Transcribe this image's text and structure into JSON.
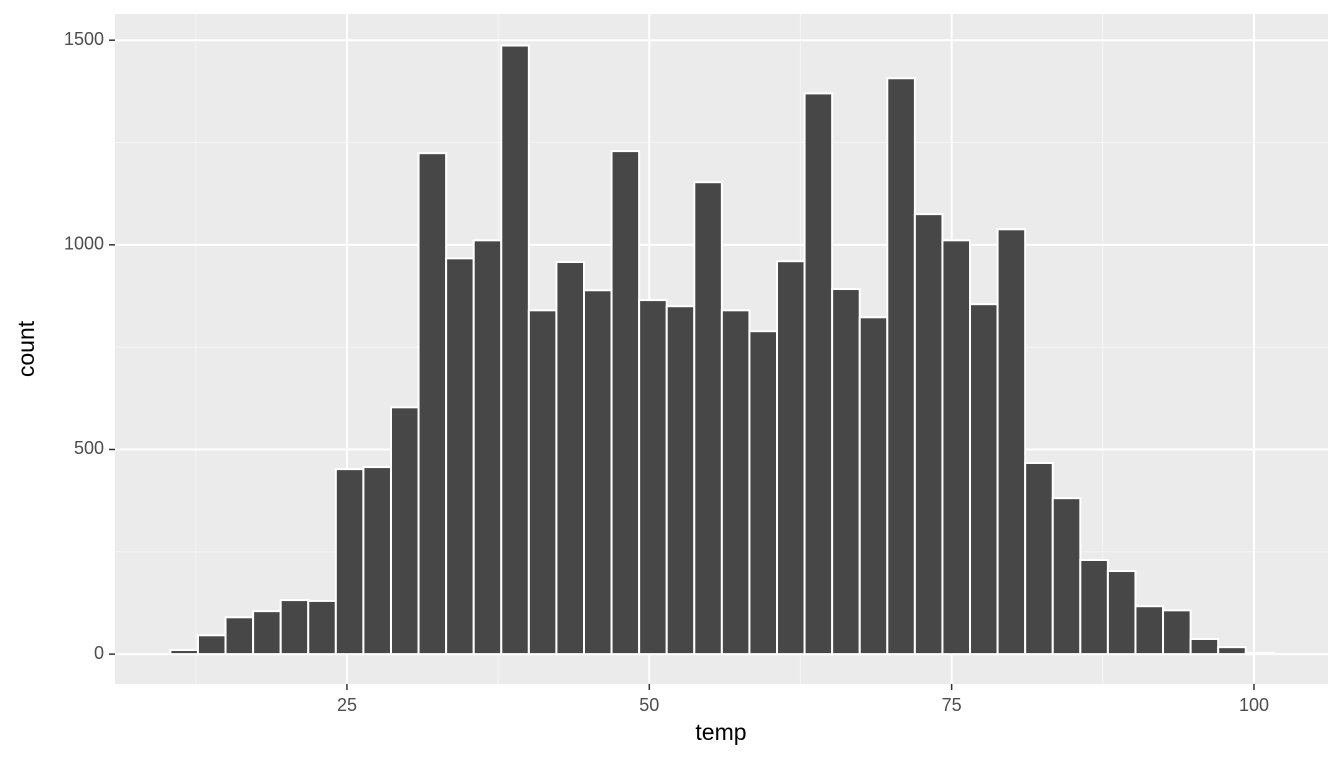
{
  "chart_data": {
    "type": "histogram",
    "x_label": "temp",
    "y_label": "count",
    "bins": [
      10.4,
      12.68,
      14.96,
      17.24,
      19.52,
      21.8,
      24.08,
      26.36,
      28.64,
      30.92,
      33.2,
      35.48,
      37.76,
      40.04,
      42.32,
      44.6,
      46.88,
      49.16,
      51.44,
      53.72,
      56.0,
      58.28,
      60.56,
      62.84,
      65.12,
      67.4,
      69.68,
      71.96,
      74.24,
      76.52,
      78.8,
      81.08,
      83.36,
      85.64,
      87.92,
      90.2,
      92.48,
      94.76,
      97.04,
      99.32,
      101.6
    ],
    "values": [
      10,
      46,
      90,
      105,
      132,
      130,
      452,
      457,
      603,
      1224,
      967,
      1011,
      1487,
      840,
      958,
      889,
      1229,
      865,
      850,
      1153,
      840,
      789,
      960,
      1370,
      892,
      823,
      1407,
      1075,
      1011,
      855,
      1038,
      467,
      381,
      230,
      203,
      117,
      107,
      37,
      17,
      3
    ],
    "color": "#474747",
    "edge_color": "#ffffff",
    "xlim": [
      5.82,
      106.12
    ],
    "ylim": [
      -73,
      1564
    ],
    "xticks": [
      25,
      50,
      75,
      100
    ],
    "yticks": [
      0,
      500,
      1000,
      1500
    ],
    "grid": true
  }
}
